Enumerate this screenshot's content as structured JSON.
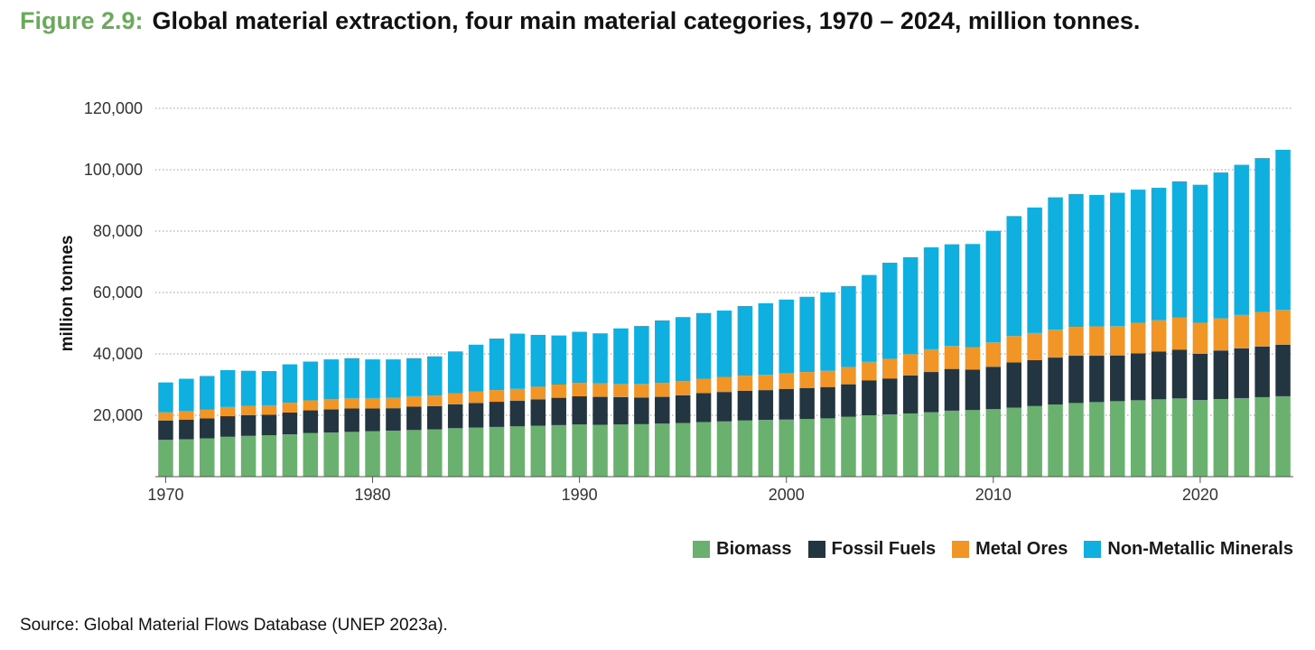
{
  "header": {
    "figure_label": "Figure 2.9:",
    "title": "Global material extraction, four main material categories, 1970 – 2024, million tonnes."
  },
  "source": "Source: Global Material Flows Database (UNEP 2023a).",
  "chart_data": {
    "type": "bar",
    "stacked": true,
    "ylabel": "million tonnes",
    "ylim": [
      0,
      120000
    ],
    "y_ticks": [
      20000,
      40000,
      60000,
      80000,
      100000,
      120000
    ],
    "y_tick_labels": [
      "20,000",
      "40,000",
      "60,000",
      "80,000",
      "100,000",
      "120,000"
    ],
    "x_tick_labels": [
      "1970",
      "1980",
      "1990",
      "2000",
      "2010",
      "2020"
    ],
    "grid": true,
    "legend_position": "bottom-right",
    "categories": [
      1970,
      1971,
      1972,
      1973,
      1974,
      1975,
      1976,
      1977,
      1978,
      1979,
      1980,
      1981,
      1982,
      1983,
      1984,
      1985,
      1986,
      1987,
      1988,
      1989,
      1990,
      1991,
      1992,
      1993,
      1994,
      1995,
      1996,
      1997,
      1998,
      1999,
      2000,
      2001,
      2002,
      2003,
      2004,
      2005,
      2006,
      2007,
      2008,
      2009,
      2010,
      2011,
      2012,
      2013,
      2014,
      2015,
      2016,
      2017,
      2018,
      2019,
      2020,
      2021,
      2022,
      2023,
      2024
    ],
    "series": [
      {
        "name": "Biomass",
        "color": "#6ab06e",
        "values": [
          12000,
          12200,
          12500,
          13000,
          13300,
          13500,
          13800,
          14200,
          14400,
          14600,
          14800,
          15000,
          15200,
          15400,
          15800,
          16000,
          16200,
          16400,
          16600,
          16800,
          17000,
          16900,
          17000,
          17100,
          17300,
          17500,
          17800,
          18000,
          18300,
          18500,
          18600,
          18800,
          19000,
          19500,
          20000,
          20300,
          20600,
          21000,
          21500,
          21700,
          22000,
          22500,
          23000,
          23500,
          24000,
          24300,
          24600,
          24900,
          25200,
          25500,
          25000,
          25300,
          25600,
          25900,
          26200
        ]
      },
      {
        "name": "Fossil Fuels",
        "color": "#243542",
        "values": [
          6300,
          6400,
          6500,
          6700,
          6700,
          6700,
          7100,
          7400,
          7500,
          7600,
          7400,
          7300,
          7600,
          7600,
          7800,
          8000,
          8200,
          8300,
          8600,
          8900,
          9200,
          9100,
          8900,
          8700,
          8700,
          9000,
          9400,
          9600,
          9700,
          9700,
          10000,
          10100,
          10200,
          10600,
          11400,
          11700,
          12400,
          13100,
          13600,
          13200,
          13800,
          14700,
          15000,
          15300,
          15400,
          15100,
          14900,
          15300,
          15600,
          15900,
          15000,
          15800,
          16200,
          16500,
          16800
        ]
      },
      {
        "name": "Metal Ores",
        "color": "#f29527",
        "values": [
          2700,
          2750,
          2800,
          3000,
          3100,
          3050,
          3150,
          3200,
          3300,
          3400,
          3400,
          3400,
          3400,
          3400,
          3600,
          3700,
          3800,
          3900,
          4100,
          4300,
          4300,
          4400,
          4400,
          4400,
          4500,
          4600,
          4700,
          4800,
          4900,
          5000,
          5100,
          5200,
          5300,
          5600,
          6000,
          6400,
          6900,
          7400,
          7500,
          7300,
          8000,
          8600,
          8800,
          9100,
          9400,
          9500,
          9600,
          9900,
          10200,
          10400,
          10100,
          10500,
          10900,
          11200,
          11400
        ]
      },
      {
        "name": "Non-Metallic Minerals",
        "color": "#0fb0e0",
        "values": [
          9700,
          10550,
          11000,
          12000,
          11400,
          11150,
          12550,
          12700,
          13000,
          13000,
          12600,
          12500,
          12400,
          12800,
          13600,
          15300,
          16800,
          18000,
          16900,
          16000,
          16700,
          16300,
          18000,
          18900,
          20400,
          20900,
          21400,
          21700,
          22700,
          23300,
          24000,
          24500,
          25500,
          26400,
          28300,
          31300,
          31600,
          33200,
          33100,
          33600,
          36300,
          39100,
          40900,
          43100,
          43300,
          42900,
          43400,
          43400,
          43100,
          44400,
          45000,
          47500,
          48900,
          50200,
          52100
        ]
      }
    ]
  }
}
